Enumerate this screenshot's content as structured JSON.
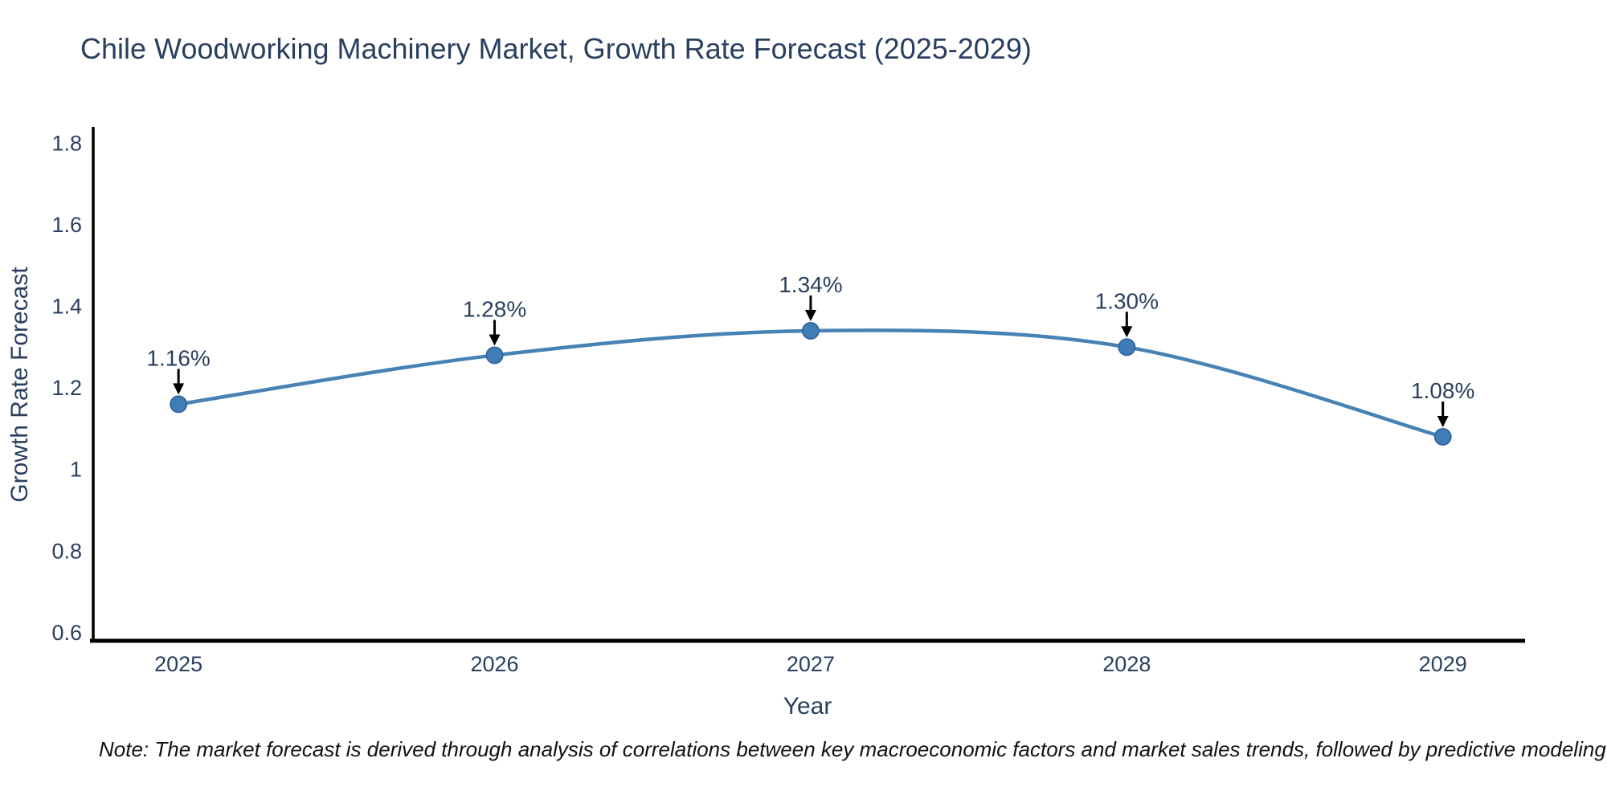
{
  "footer": {
    "note": "Note: The market forecast is derived through analysis of correlations between key macroeconomic factors and market sales trends, followed by predictive modeling to project future sales"
  },
  "chart_data": {
    "type": "line",
    "title": "Chile Woodworking Machinery Market, Growth Rate Forecast (2025-2029)",
    "xlabel": "Year",
    "ylabel": "Growth Rate Forecast",
    "x": [
      2025,
      2026,
      2027,
      2028,
      2029
    ],
    "series": [
      {
        "name": "Growth Rate Forecast",
        "values": [
          1.16,
          1.28,
          1.34,
          1.3,
          1.08
        ]
      }
    ],
    "point_labels": [
      "1.16%",
      "1.28%",
      "1.34%",
      "1.30%",
      "1.08%"
    ],
    "xtick_labels": [
      "2025",
      "2026",
      "2027",
      "2028",
      "2029"
    ],
    "yticks": [
      0.6,
      0.8,
      1,
      1.2,
      1.4,
      1.6,
      1.8
    ],
    "ytick_labels": [
      "0.6",
      "0.8",
      "1",
      "1.2",
      "1.4",
      "1.6",
      "1.8"
    ],
    "xlim": [
      2024.72,
      2029.26
    ],
    "ylim": [
      0.58,
      1.84
    ],
    "grid": false,
    "legend": false,
    "line_shape": "spline",
    "marker_size": 10,
    "annotation_arrows": true,
    "colors": {
      "line": "#4682b4",
      "marker_fill": "#3f7db8",
      "marker_edge": "#35689c",
      "axis_spine": "#000000",
      "tick_text": "#2a3f5f",
      "title_text": "#2a3f5f",
      "annotation_text": "#2a3f5f",
      "arrow": "#000000",
      "note_text": "#111111",
      "background": "#ffffff"
    }
  }
}
